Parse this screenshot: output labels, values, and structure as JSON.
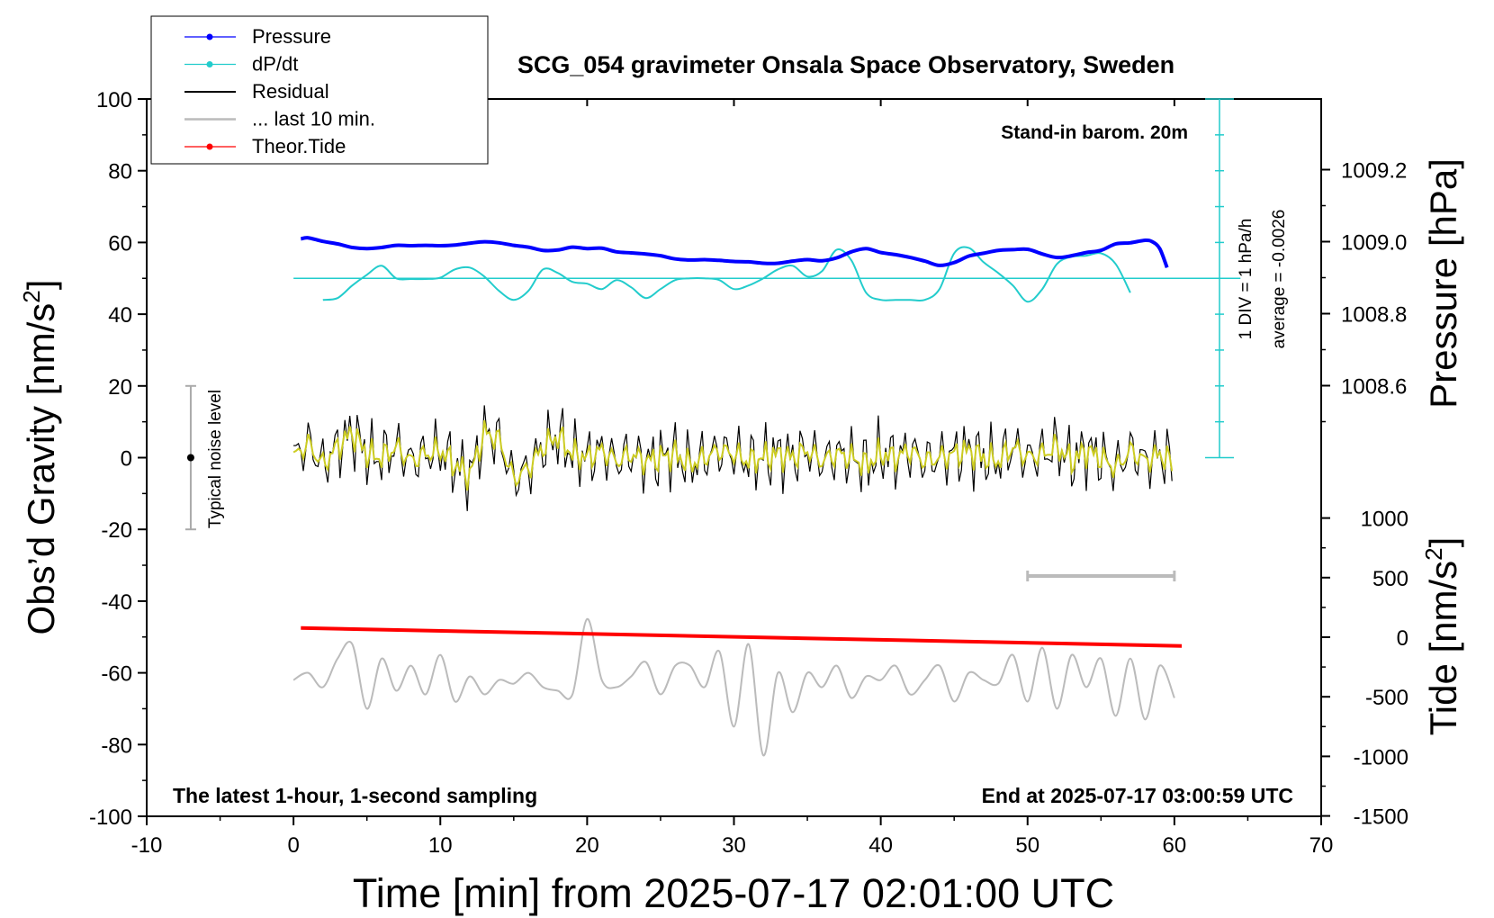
{
  "chart_data": {
    "type": "line",
    "title": "SCG_054 gravimeter Onsala Space Observatory, Sweden",
    "xlabel": "Time [min] from 2025-07-17 02:01:00 UTC",
    "ylabel_left_main": "Obs’d Gravity [nm/s",
    "ylabel_left_sup": "2",
    "ylabel_left_end": "]",
    "ylabel_right_pressure": "Pressure [hPa]",
    "ylabel_right_tide_main": "Tide [nm/s",
    "ylabel_right_tide_sup": "2",
    "ylabel_right_tide_end": "]",
    "xlim": [
      -10,
      70
    ],
    "ylim_gravity": [
      -100,
      100
    ],
    "ylim_pressure": [
      1008.4,
      1009.4
    ],
    "ylim_tide": [
      -1500,
      1500
    ],
    "x_ticks": [
      "-10",
      "0",
      "10",
      "20",
      "30",
      "40",
      "50",
      "60",
      "70"
    ],
    "gravity_ticks": [
      "100",
      "80",
      "60",
      "40",
      "20",
      "0",
      "-20",
      "-40",
      "-60",
      "-80",
      "-100"
    ],
    "pressure_ticks": [
      "1009.2",
      "1009.0",
      "1008.8",
      "1008.6"
    ],
    "tide_ticks": [
      "1000",
      "500",
      "0",
      "-500",
      "-1000",
      "-1500"
    ],
    "annotations": {
      "barometer": "Stand-in barom. 20m",
      "div_label": "1 DIV = 1 hPa/h",
      "average_label": "average = -0.0026",
      "noise_label": "Typical noise level",
      "bottom_left": "The latest 1-hour, 1-second sampling",
      "bottom_right": "End at 2025-07-17 03:00:59 UTC"
    },
    "legend": {
      "position": "top-left",
      "entries": [
        {
          "label": "Pressure",
          "color": "#0000ff",
          "marker": "dot"
        },
        {
          "label": "dP/dt",
          "color": "#22cccc",
          "marker": "dot"
        },
        {
          "label": "Residual",
          "color": "#000000",
          "marker": "none"
        },
        {
          "label": "... last 10 min.",
          "color": "#bbbbbb",
          "marker": "none"
        },
        {
          "label": "Theor.Tide",
          "color": "#ff0000",
          "marker": "dot"
        }
      ]
    },
    "dpdt_reference": 50,
    "noise_bar": {
      "x": -7,
      "center": 0,
      "low": -20,
      "high": 20
    },
    "last10_bar": {
      "x_start": 50,
      "x_end": 60,
      "gravity_level": -33
    },
    "series": [
      {
        "name": "Pressure",
        "color": "#0000ff",
        "axis": "gravity",
        "x": [
          0.5,
          1,
          2,
          3,
          4,
          5,
          6,
          7,
          8,
          9,
          10,
          11,
          12,
          13,
          14,
          15,
          16,
          17,
          18,
          19,
          20,
          21,
          22,
          23,
          24,
          25,
          26,
          27,
          28,
          29,
          30,
          31,
          32,
          33,
          34,
          35,
          36,
          37,
          38,
          39,
          40,
          41,
          42,
          43,
          44,
          45,
          46,
          47,
          48,
          49,
          50,
          51,
          52,
          53,
          54,
          55,
          56,
          57,
          58,
          58.5,
          59,
          59.5
        ],
        "values": [
          61,
          61.3,
          60.3,
          59.6,
          58.6,
          58.3,
          58.6,
          59.2,
          59.1,
          59.2,
          59.1,
          59.3,
          59.8,
          60.2,
          59.9,
          59.2,
          58.7,
          57.8,
          57.9,
          58.7,
          58.3,
          58.4,
          57.4,
          57.1,
          56.8,
          56.3,
          55.4,
          55.1,
          55.2,
          55.0,
          54.7,
          54.6,
          54.2,
          54.2,
          54.8,
          55.2,
          54.9,
          55.7,
          57.4,
          58.3,
          57.2,
          56.6,
          55.8,
          54.8,
          53.6,
          54.4,
          56.2,
          57.0,
          57.8,
          58.0,
          58.1,
          56.8,
          55.8,
          56.3,
          57.2,
          57.8,
          59.6,
          59.9,
          60.6,
          60.2,
          58.3,
          53.0
        ]
      },
      {
        "name": "dP/dt",
        "color": "#22cccc",
        "axis": "gravity",
        "x": [
          2,
          3,
          4,
          5,
          6,
          7,
          8,
          9,
          10,
          11,
          12,
          13,
          14,
          15,
          16,
          17,
          18,
          19,
          20,
          21,
          22,
          23,
          24,
          25,
          26,
          27,
          28,
          29,
          30,
          31,
          32,
          33,
          34,
          35,
          36,
          37,
          38,
          39,
          40,
          41,
          42,
          43,
          44,
          45,
          46,
          47,
          48,
          49,
          50,
          51,
          52,
          53,
          54,
          55,
          56,
          57
        ],
        "values": [
          44,
          44.5,
          48,
          51,
          53.5,
          50,
          49.8,
          49.8,
          50.2,
          52.5,
          53,
          50.5,
          46.5,
          44,
          46.5,
          52.5,
          51.5,
          49,
          48.5,
          47,
          49.5,
          47.5,
          44.5,
          47,
          49.5,
          50,
          50,
          49.5,
          47,
          48,
          50,
          52.5,
          53.5,
          50.5,
          52,
          58,
          55,
          46,
          44,
          44,
          44,
          44,
          47,
          57,
          58.5,
          54.5,
          51.5,
          48,
          43.5,
          47,
          54,
          56,
          56.3,
          57,
          54,
          46
        ]
      },
      {
        "name": "Residual",
        "color": "#000000",
        "axis": "gravity",
        "x": [
          0,
          1,
          2,
          3,
          4,
          5,
          6,
          7,
          8,
          9,
          10,
          11,
          12,
          13,
          14,
          15,
          16,
          17,
          18,
          19,
          20,
          21,
          22,
          23,
          24,
          25,
          26,
          27,
          28,
          29,
          30,
          31,
          32,
          33,
          34,
          35,
          36,
          37,
          38,
          39,
          40,
          41,
          42,
          43,
          44,
          45,
          46,
          47,
          48,
          49,
          50,
          51,
          52,
          53,
          54,
          55,
          56,
          57,
          58,
          59,
          60
        ],
        "values": [
          0,
          4,
          -2,
          3,
          7,
          1,
          0,
          3,
          -1,
          1,
          2,
          -2,
          -5,
          7,
          5,
          -6,
          -3,
          3,
          6,
          1,
          0,
          2,
          -1,
          1,
          -1,
          0,
          1,
          -2,
          0,
          2,
          1,
          -1,
          0,
          1,
          0,
          2,
          -1,
          1,
          0,
          -2,
          1,
          0,
          2,
          -1,
          0,
          1,
          2,
          0,
          -1,
          3,
          0,
          1,
          3,
          -1,
          2,
          0,
          -3,
          2,
          -1,
          1,
          -2
        ]
      },
      {
        "name": "... last 10 min.",
        "color": "#bbbbbb",
        "axis": "gravity",
        "x": [
          0,
          1,
          2,
          3,
          4,
          5,
          6,
          7,
          8,
          9,
          10,
          11,
          12,
          13,
          14,
          15,
          16,
          17,
          18,
          19,
          20,
          21,
          22,
          23,
          24,
          25,
          26,
          27,
          28,
          29,
          30,
          31,
          32,
          33,
          34,
          35,
          36,
          37,
          38,
          39,
          40,
          41,
          42,
          43,
          44,
          45,
          46,
          47,
          48,
          49,
          50,
          51,
          52,
          53,
          54,
          55,
          56,
          57,
          58,
          59,
          60
        ],
        "values": [
          -62,
          -60,
          -64,
          -56,
          -52,
          -70,
          -56,
          -65,
          -58,
          -66,
          -55,
          -68,
          -61,
          -66,
          -62,
          -63,
          -60,
          -64,
          -65,
          -66,
          -45,
          -62,
          -64,
          -61,
          -57,
          -66,
          -58,
          -58,
          -64,
          -54,
          -75,
          -52,
          -83,
          -60,
          -71,
          -60,
          -64,
          -58,
          -67,
          -61,
          -62,
          -58,
          -66,
          -62,
          -58,
          -68,
          -60,
          -62,
          -63,
          -55,
          -68,
          -53,
          -70,
          -55,
          -64,
          -56,
          -72,
          -56,
          -73,
          -58,
          -67
        ]
      },
      {
        "name": "Theor.Tide",
        "color": "#ff0000",
        "axis": "gravity",
        "x": [
          0.5,
          60.5
        ],
        "values": [
          -47.5,
          -52.5
        ]
      }
    ]
  }
}
